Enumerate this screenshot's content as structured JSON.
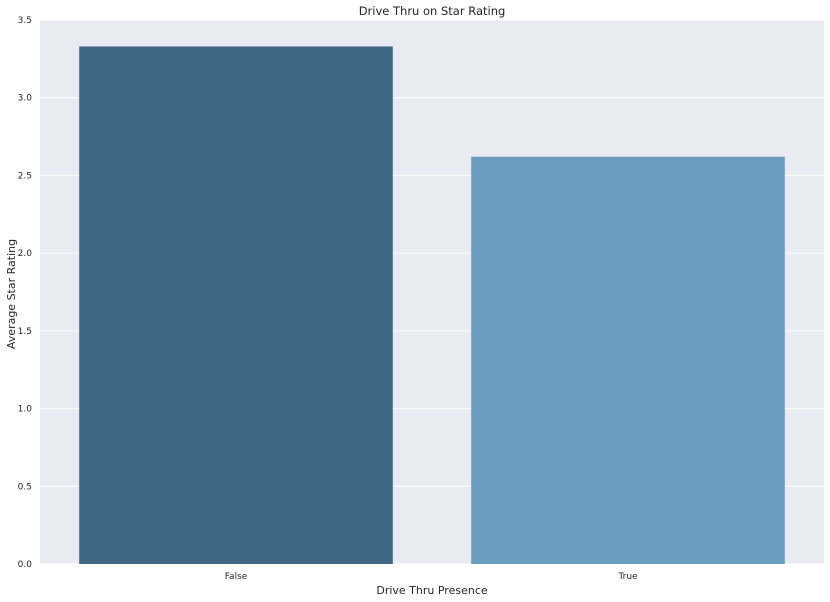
{
  "chart_data": {
    "type": "bar",
    "title": "Drive Thru on Star Rating",
    "xlabel": "Drive Thru Presence",
    "ylabel": "Average Star Rating",
    "categories": [
      "False",
      "True"
    ],
    "values": [
      3.33,
      2.62
    ],
    "ylim": [
      0,
      3.5
    ],
    "yticks": [
      "0.0",
      "0.5",
      "1.0",
      "1.5",
      "2.0",
      "2.5",
      "3.0",
      "3.5"
    ],
    "ytick_values": [
      0,
      0.5,
      1.0,
      1.5,
      2.0,
      2.5,
      3.0,
      3.5
    ],
    "grid": "y-major",
    "style": "seaborn-darkgrid",
    "colors": {
      "background": "#EAEAF2",
      "grid": "#FFFFFF",
      "bars": [
        "#3F6683",
        "#6A9DC0"
      ]
    }
  }
}
